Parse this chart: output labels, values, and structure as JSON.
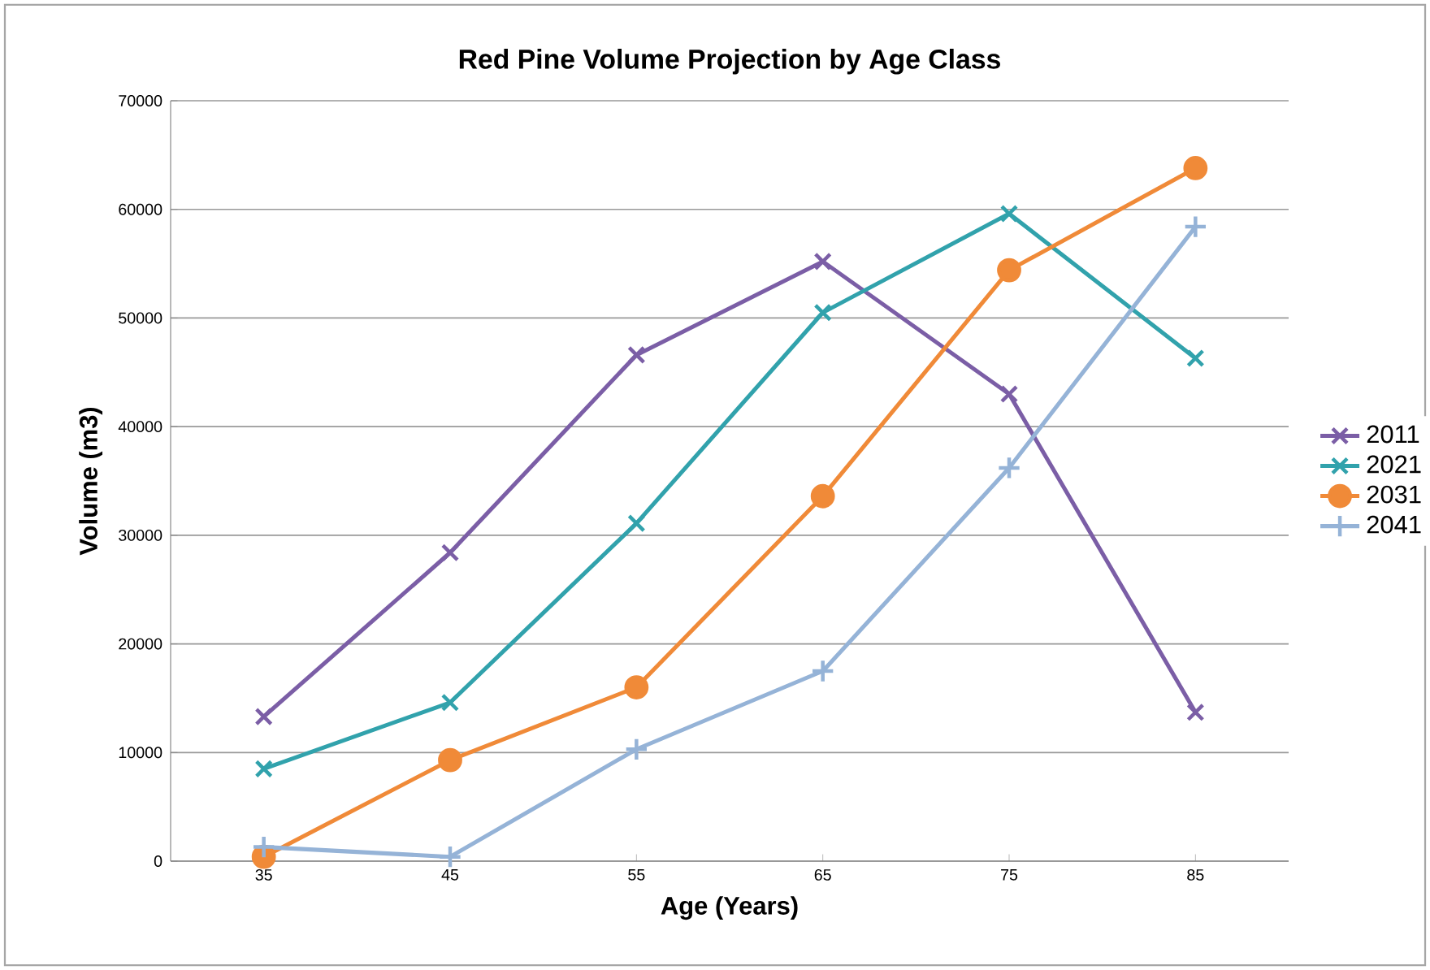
{
  "chart_data": {
    "type": "line",
    "title": "Red Pine Volume Projection by Age Class",
    "xlabel": "Age (Years)",
    "ylabel": "Volume (m3)",
    "categories": [
      "35",
      "45",
      "55",
      "65",
      "75",
      "85"
    ],
    "series": [
      {
        "name": "2011",
        "color": "#7b5ea6",
        "marker": "cross",
        "values": [
          13300,
          28400,
          46600,
          55200,
          43000,
          13700
        ]
      },
      {
        "name": "2021",
        "color": "#31a2ac",
        "marker": "cross",
        "values": [
          8500,
          14600,
          31100,
          50500,
          59600,
          46300
        ]
      },
      {
        "name": "2031",
        "color": "#f08a38",
        "marker": "circle",
        "values": [
          400,
          9300,
          16000,
          33600,
          54400,
          63800
        ]
      },
      {
        "name": "2041",
        "color": "#95b3d7",
        "marker": "plus",
        "values": [
          1300,
          400,
          10300,
          17500,
          36200,
          58400
        ]
      }
    ],
    "ylim": [
      0,
      70000
    ],
    "yticks": [
      0,
      10000,
      20000,
      30000,
      40000,
      50000,
      60000,
      70000
    ],
    "grid": "y",
    "legend": "right",
    "line_style": "solid"
  }
}
